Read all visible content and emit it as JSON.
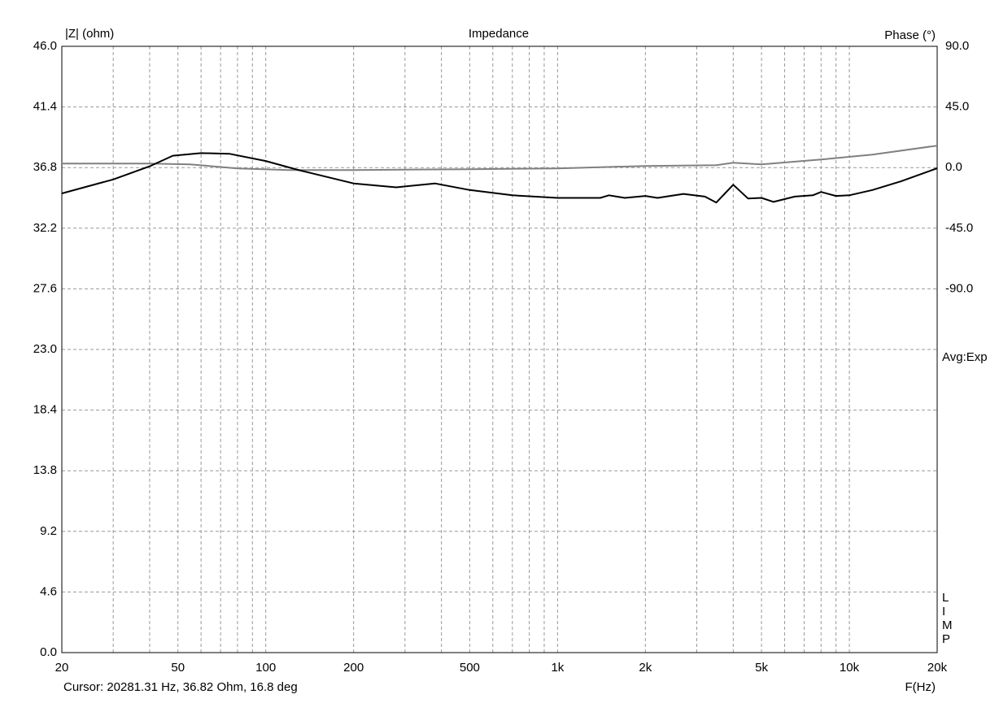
{
  "chart_data": {
    "type": "line",
    "title": "Impedance",
    "ylabel": "|Z| (ohm)",
    "y2label": "Phase (°)",
    "xlabel": "F(Hz)",
    "cursor": "Cursor: 20281.31 Hz, 36.82 Ohm, 16.8 deg",
    "averaging": "Avg:Exp",
    "brand": "LIMP",
    "xscale": "log",
    "grid": true,
    "xlim": [
      20,
      20000
    ],
    "xticks": [
      20,
      50,
      100,
      200,
      500,
      {
        "value": 1000,
        "label": "1k"
      },
      {
        "value": 2000,
        "label": "2k"
      },
      {
        "value": 5000,
        "label": "5k"
      },
      {
        "value": 10000,
        "label": "10k"
      },
      {
        "value": 20000,
        "label": "20k"
      }
    ],
    "xminorticks": [
      30,
      40,
      60,
      70,
      80,
      90,
      300,
      400,
      600,
      700,
      800,
      900,
      3000,
      4000,
      6000,
      7000,
      8000,
      9000
    ],
    "ylim": [
      0,
      46
    ],
    "yticks": [
      {
        "value": 0,
        "label": "0.0"
      },
      4.6,
      9.2,
      13.8,
      18.4,
      {
        "value": 23,
        "label": "23.0"
      },
      27.6,
      32.2,
      36.8,
      41.4,
      {
        "value": 46,
        "label": "46.0"
      }
    ],
    "y2lim": [
      -360,
      90
    ],
    "y2ticks": [
      {
        "value": -90,
        "label": "-90.0"
      },
      {
        "value": -45,
        "label": "-45.0"
      },
      {
        "value": 0,
        "label": "0.0"
      },
      {
        "value": 45,
        "label": "45.0"
      },
      {
        "value": 90,
        "label": "90.0"
      }
    ],
    "series": [
      {
        "name": "|Z|",
        "color": "#000000",
        "axis": "y",
        "x": [
          20,
          30,
          40,
          48,
          60,
          75,
          100,
          130,
          200,
          280,
          380,
          500,
          700,
          1000,
          1400,
          1500,
          1700,
          2000,
          2200,
          2700,
          3200,
          3500,
          4000,
          4500,
          5000,
          5500,
          6500,
          7500,
          8000,
          9000,
          10000,
          12000,
          15000,
          20000
        ],
        "values": [
          34.84,
          35.9,
          36.9,
          37.7,
          37.9,
          37.85,
          37.3,
          36.6,
          35.6,
          35.3,
          35.6,
          35.1,
          34.7,
          34.5,
          34.5,
          34.7,
          34.5,
          34.65,
          34.5,
          34.8,
          34.6,
          34.15,
          35.5,
          34.45,
          34.5,
          34.2,
          34.6,
          34.7,
          34.95,
          34.65,
          34.7,
          35.1,
          35.75,
          36.75
        ]
      },
      {
        "name": "Phase",
        "color": "#808080",
        "axis": "y2",
        "x": [
          20,
          40,
          55,
          80,
          120,
          200,
          500,
          1000,
          2000,
          3500,
          4000,
          5000,
          8000,
          12000,
          20000
        ],
        "values": [
          3.0,
          3.0,
          2.4,
          -0.6,
          -1.8,
          -1.8,
          -1.2,
          -0.6,
          1.2,
          1.8,
          3.6,
          2.4,
          6.0,
          9.6,
          16.3
        ]
      }
    ]
  }
}
